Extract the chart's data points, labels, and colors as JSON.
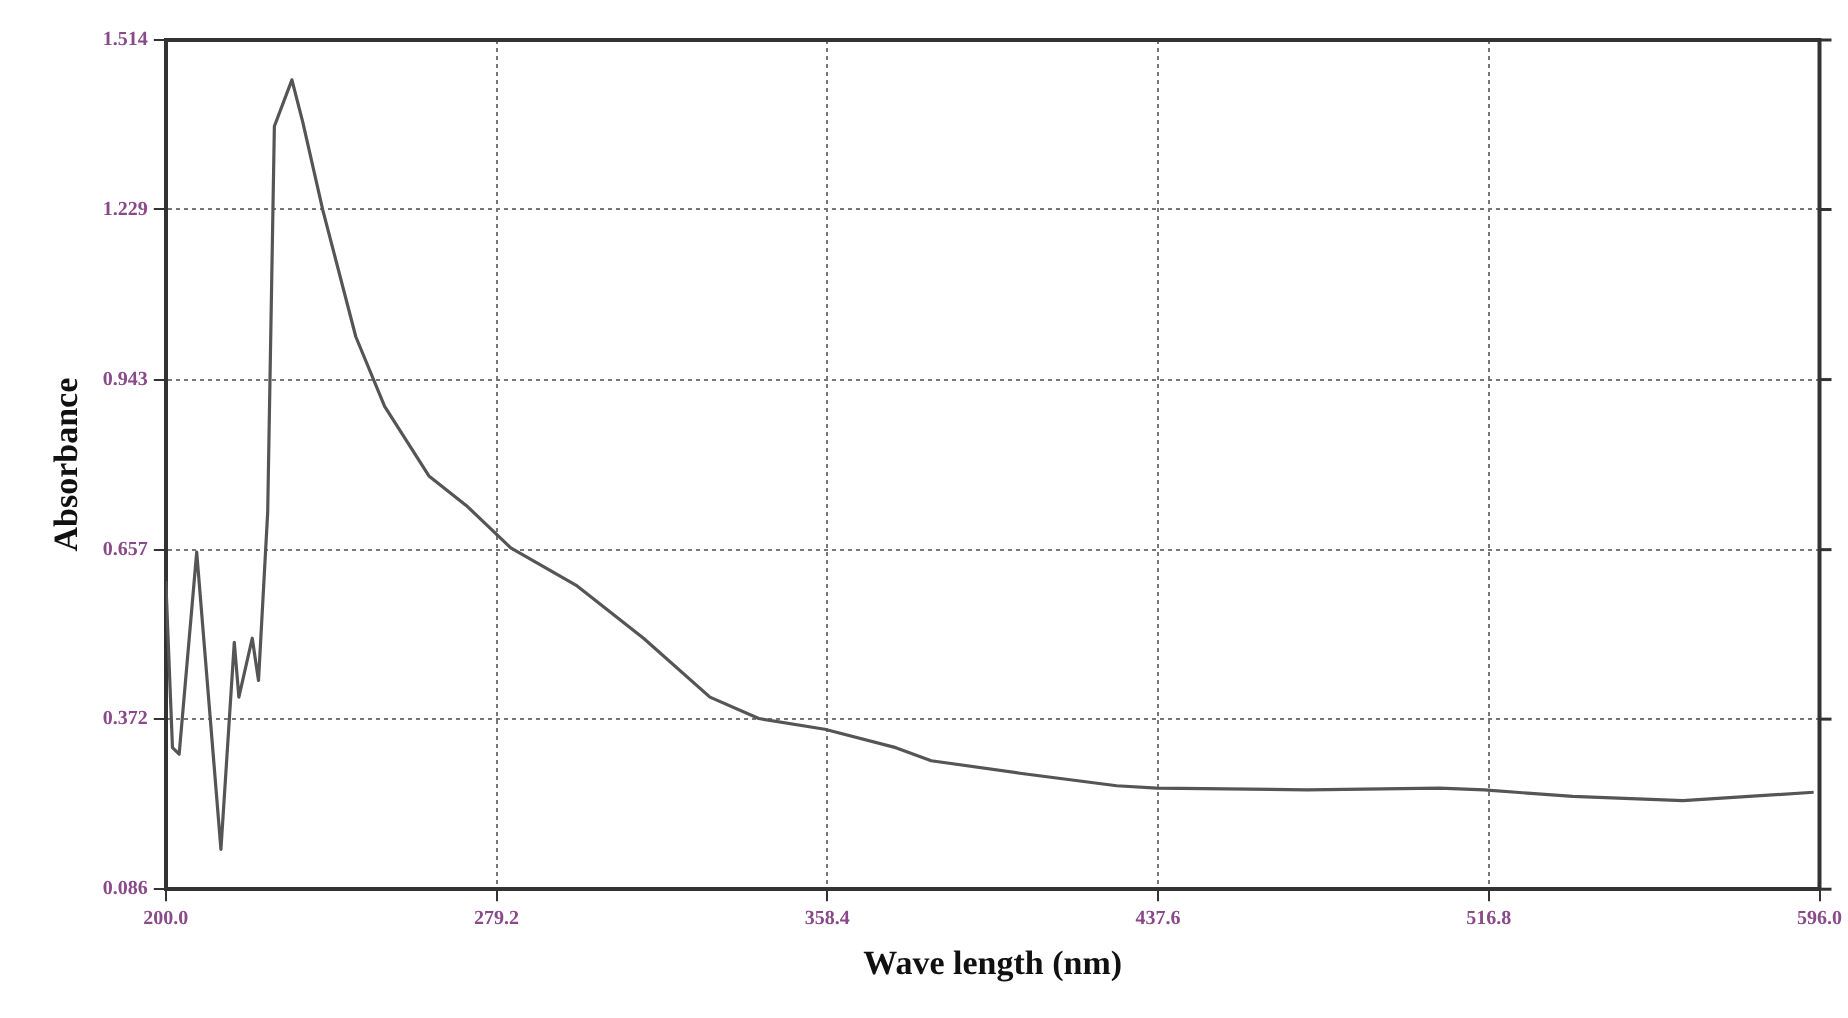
{
  "chart_data": {
    "type": "line",
    "xlabel": "Wave length (nm)",
    "ylabel": "Absorbance",
    "xlim": [
      200,
      596
    ],
    "ylim": [
      0.086,
      1.514
    ],
    "xticks": [
      {
        "value": 200,
        "label": "200.0"
      },
      279.2,
      358.4,
      437.6,
      516.8,
      {
        "value": 596,
        "label": "596.0"
      }
    ],
    "yticks": [
      0.086,
      0.372,
      0.657,
      0.943,
      1.229,
      1.514
    ],
    "grid": true,
    "marker": "none",
    "line_style": "solid",
    "series": [
      {
        "color": "#555555",
        "x": [
          200,
          201.6,
          203.2,
          207.4,
          213.2,
          216.4,
          217.5,
          220.7,
          222.2,
          224.4,
          226,
          230.2,
          232.8,
          237.6,
          245.5,
          252.4,
          263,
          272,
          282.6,
          298.5,
          314.4,
          330.3,
          342,
          357.8,
          374.8,
          383.3,
          404.5,
          427.7,
          437.3,
          473.3,
          505,
          515.7,
          536.9,
          563.3,
          594.6
        ],
        "values": [
          0.604,
          0.324,
          0.313,
          0.653,
          0.153,
          0.501,
          0.409,
          0.508,
          0.437,
          0.72,
          1.369,
          1.447,
          1.376,
          1.228,
          1.015,
          0.898,
          0.781,
          0.731,
          0.66,
          0.596,
          0.508,
          0.409,
          0.373,
          0.355,
          0.324,
          0.302,
          0.281,
          0.26,
          0.256,
          0.253,
          0.256,
          0.253,
          0.242,
          0.235,
          0.249
        ]
      }
    ]
  }
}
